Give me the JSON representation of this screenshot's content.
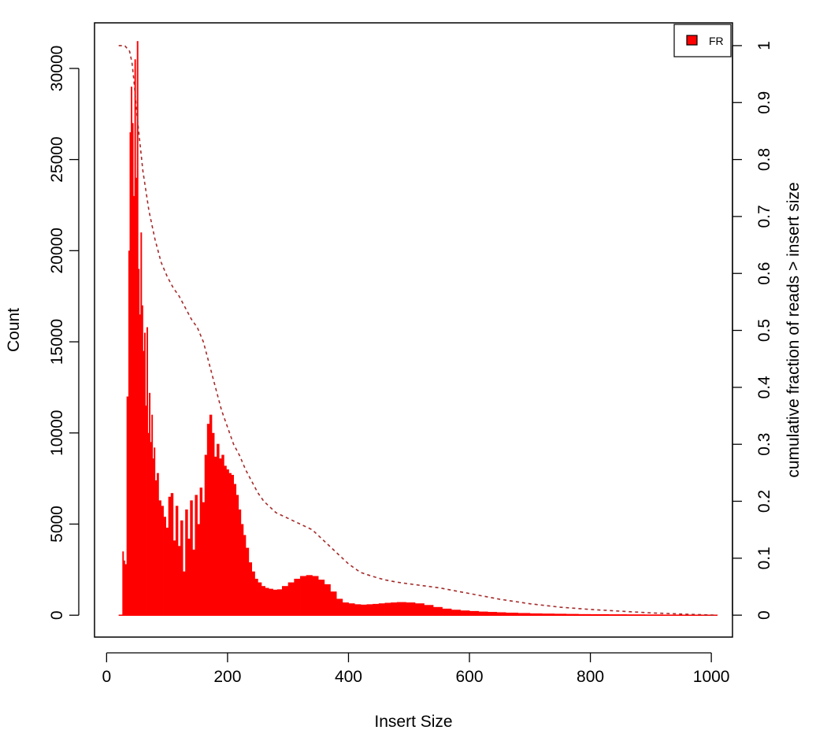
{
  "chart_data": {
    "type": "bar",
    "title": "",
    "xlabel": "Insert Size",
    "ylabel": "Count",
    "y2label": "cumulative fraction of reads > insert size",
    "xlim": [
      -20,
      1035
    ],
    "ylim": [
      -1200,
      32500
    ],
    "y2lim": [
      -0.0385,
      1.04
    ],
    "xticks": [
      0,
      200,
      400,
      600,
      800,
      1000
    ],
    "yticks": [
      0,
      5000,
      10000,
      15000,
      20000,
      25000,
      30000
    ],
    "y2ticks": [
      0,
      0.1,
      0.2,
      0.3,
      0.4,
      0.5,
      0.6,
      0.7,
      0.8,
      0.9,
      1
    ],
    "grid": false,
    "legend": {
      "position": "top-right",
      "entries": [
        {
          "name": "FR",
          "color": "#ff0000"
        }
      ]
    },
    "series": [
      {
        "name": "FR",
        "color": "#ff0000",
        "x": [
          20,
          24,
          26,
          28,
          30,
          33,
          36,
          38,
          40,
          42,
          44,
          46,
          48,
          50,
          52,
          54,
          56,
          58,
          60,
          62,
          64,
          66,
          68,
          70,
          72,
          74,
          76,
          78,
          80,
          83,
          86,
          90,
          94,
          98,
          102,
          106,
          110,
          114,
          118,
          122,
          126,
          130,
          134,
          138,
          142,
          146,
          150,
          154,
          158,
          162,
          166,
          170,
          174,
          178,
          182,
          186,
          190,
          194,
          198,
          202,
          206,
          210,
          214,
          218,
          222,
          226,
          230,
          235,
          240,
          245,
          250,
          256,
          262,
          268,
          275,
          282,
          290,
          300,
          310,
          320,
          330,
          340,
          350,
          360,
          370,
          380,
          390,
          400,
          410,
          420,
          430,
          440,
          450,
          460,
          470,
          480,
          495,
          510,
          525,
          540,
          555,
          570,
          585,
          600,
          615,
          630,
          645,
          660,
          680,
          700,
          720,
          740,
          760,
          780,
          800,
          830,
          860,
          890,
          920,
          950,
          980,
          1010
        ],
        "values": [
          0,
          0,
          3500,
          3000,
          2800,
          12000,
          20000,
          26500,
          29000,
          27000,
          23000,
          30500,
          24000,
          31500,
          19000,
          16500,
          21000,
          17000,
          14500,
          15500,
          11500,
          15800,
          10000,
          12200,
          9500,
          11000,
          8600,
          9200,
          7400,
          7800,
          6300,
          6000,
          5400,
          4800,
          6500,
          6700,
          4100,
          6000,
          3800,
          5200,
          2400,
          5800,
          4200,
          6300,
          3600,
          6600,
          5000,
          7000,
          6200,
          8800,
          10500,
          11000,
          10000,
          8700,
          9400,
          8600,
          8800,
          8200,
          8000,
          7800,
          7700,
          7200,
          6600,
          5800,
          5000,
          4400,
          3700,
          2900,
          2400,
          2000,
          1800,
          1600,
          1500,
          1450,
          1400,
          1420,
          1600,
          1800,
          2000,
          2150,
          2200,
          2150,
          1950,
          1700,
          1300,
          900,
          700,
          650,
          600,
          580,
          600,
          620,
          650,
          680,
          700,
          720,
          700,
          650,
          560,
          450,
          360,
          300,
          260,
          230,
          200,
          180,
          160,
          140,
          120,
          100,
          90,
          80,
          70,
          60,
          55,
          50,
          45,
          40,
          35,
          30,
          25,
          20
        ]
      },
      {
        "name": "",
        "color": "#a52a2a",
        "style": "dashed",
        "axis": "right",
        "x": [
          20,
          30,
          38,
          42,
          46,
          50,
          55,
          60,
          70,
          80,
          90,
          100,
          110,
          120,
          130,
          140,
          150,
          160,
          170,
          180,
          190,
          200,
          210,
          220,
          230,
          240,
          250,
          260,
          270,
          280,
          290,
          300,
          320,
          340,
          360,
          380,
          400,
          420,
          440,
          460,
          480,
          500,
          550,
          600,
          650,
          700,
          750,
          800,
          850,
          900,
          950,
          1010
        ],
        "values": [
          1.0,
          1.0,
          0.99,
          0.97,
          0.93,
          0.88,
          0.83,
          0.78,
          0.71,
          0.66,
          0.62,
          0.595,
          0.575,
          0.56,
          0.54,
          0.52,
          0.505,
          0.48,
          0.44,
          0.4,
          0.36,
          0.33,
          0.3,
          0.28,
          0.255,
          0.235,
          0.215,
          0.2,
          0.19,
          0.18,
          0.175,
          0.17,
          0.16,
          0.15,
          0.13,
          0.11,
          0.09,
          0.075,
          0.068,
          0.062,
          0.058,
          0.055,
          0.048,
          0.038,
          0.028,
          0.02,
          0.014,
          0.01,
          0.007,
          0.004,
          0.002,
          0.0
        ]
      }
    ]
  }
}
